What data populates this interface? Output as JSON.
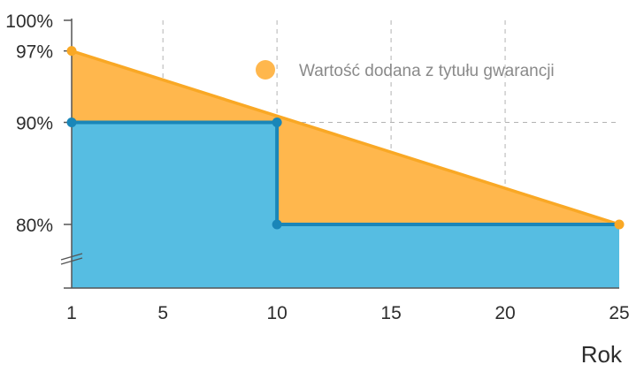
{
  "chart_data": {
    "type": "area",
    "xlabel": "Rok",
    "ylabel": "",
    "x_ticks": [
      1,
      5,
      10,
      15,
      20,
      25
    ],
    "y_tick_labels": [
      {
        "value": 100,
        "label": "100%"
      },
      {
        "value": 97,
        "label": "97%"
      },
      {
        "value": 90,
        "label": "90%"
      },
      {
        "value": 80,
        "label": "80%"
      }
    ],
    "xlim": [
      1,
      25
    ],
    "ylim_display": [
      73.5,
      100
    ],
    "axis_break": true,
    "grid": true,
    "legend_position": "top-right",
    "series": [
      {
        "name": "Wartość dodana z tytułu gwarancji",
        "color": "#ffb74d",
        "line_color": "#f9a825",
        "points": [
          {
            "x": 1,
            "y": 97
          },
          {
            "x": 25,
            "y": 80
          }
        ]
      },
      {
        "name": "",
        "color": "#56bde2",
        "line_color": "#1a86b8",
        "points": [
          {
            "x": 1,
            "y": 90
          },
          {
            "x": 10,
            "y": 90
          },
          {
            "x": 10,
            "y": 80
          },
          {
            "x": 25,
            "y": 80
          }
        ]
      }
    ]
  }
}
